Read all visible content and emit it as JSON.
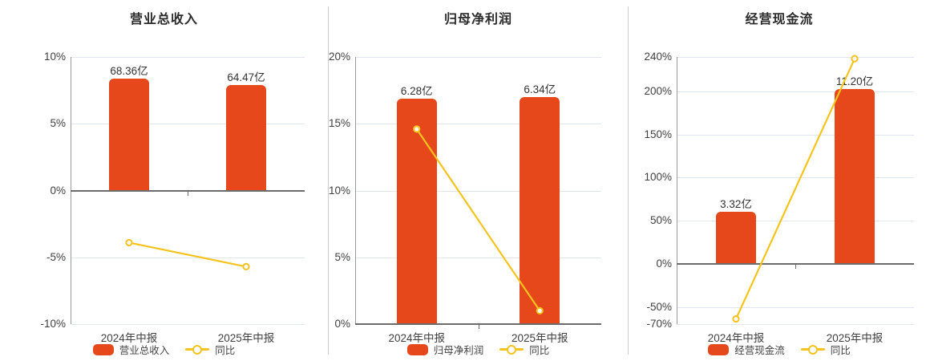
{
  "colors": {
    "bar": "#e6481c",
    "line": "#f5c31e",
    "grid": "#dfe6ee",
    "zero_axis": "#6b6b6b",
    "axis_line": "#999999",
    "separator": "#cccccc",
    "title_text": "#2b2b2b",
    "tick_text": "#404040",
    "legend_text": "#444444"
  },
  "chart_data": [
    {
      "type": "bar",
      "subtype": "bar+line combo",
      "title": "营业总收入",
      "categories": [
        "2024年中报",
        "2025年中报"
      ],
      "ylim": [
        -10,
        10
      ],
      "ytick_values": [
        10,
        5,
        0,
        -5,
        -10
      ],
      "ytick_labels": [
        "10%",
        "5%",
        "0%",
        "-5%",
        "-10%"
      ],
      "grid": true,
      "legend_position": "bottom",
      "series": [
        {
          "name": "营业总收入",
          "type": "bar",
          "value_labels": [
            "68.36亿",
            "64.47亿"
          ],
          "plotted_pct": [
            8.4,
            7.9
          ]
        },
        {
          "name": "同比",
          "type": "line",
          "values_pct": [
            -3.9,
            -5.7
          ]
        }
      ]
    },
    {
      "type": "bar",
      "subtype": "bar+line combo",
      "title": "归母净利润",
      "categories": [
        "2024年中报",
        "2025年中报"
      ],
      "ylim": [
        0,
        20
      ],
      "ytick_values": [
        20,
        15,
        10,
        5,
        0
      ],
      "ytick_labels": [
        "20%",
        "15%",
        "10%",
        "5%",
        "0%"
      ],
      "grid": true,
      "legend_position": "bottom",
      "series": [
        {
          "name": "归母净利润",
          "type": "bar",
          "value_labels": [
            "6.28亿",
            "6.34亿"
          ],
          "plotted_pct": [
            16.9,
            17.0
          ]
        },
        {
          "name": "同比",
          "type": "line",
          "values_pct": [
            14.6,
            1.0
          ]
        }
      ]
    },
    {
      "type": "bar",
      "subtype": "bar+line combo",
      "title": "经营现金流",
      "categories": [
        "2024年中报",
        "2025年中报"
      ],
      "ylim": [
        -70,
        240
      ],
      "ytick_values": [
        240,
        200,
        150,
        100,
        50,
        0,
        -50,
        -70
      ],
      "ytick_labels": [
        "240%",
        "200%",
        "150%",
        "100%",
        "50%",
        "0%",
        "-50%",
        "-70%"
      ],
      "grid": true,
      "legend_position": "bottom",
      "series": [
        {
          "name": "经营现金流",
          "type": "bar",
          "value_labels": [
            "3.32亿",
            "11.20亿"
          ],
          "plotted_pct": [
            60,
            203
          ]
        },
        {
          "name": "同比",
          "type": "line",
          "values_pct": [
            -64,
            238
          ]
        }
      ]
    }
  ]
}
